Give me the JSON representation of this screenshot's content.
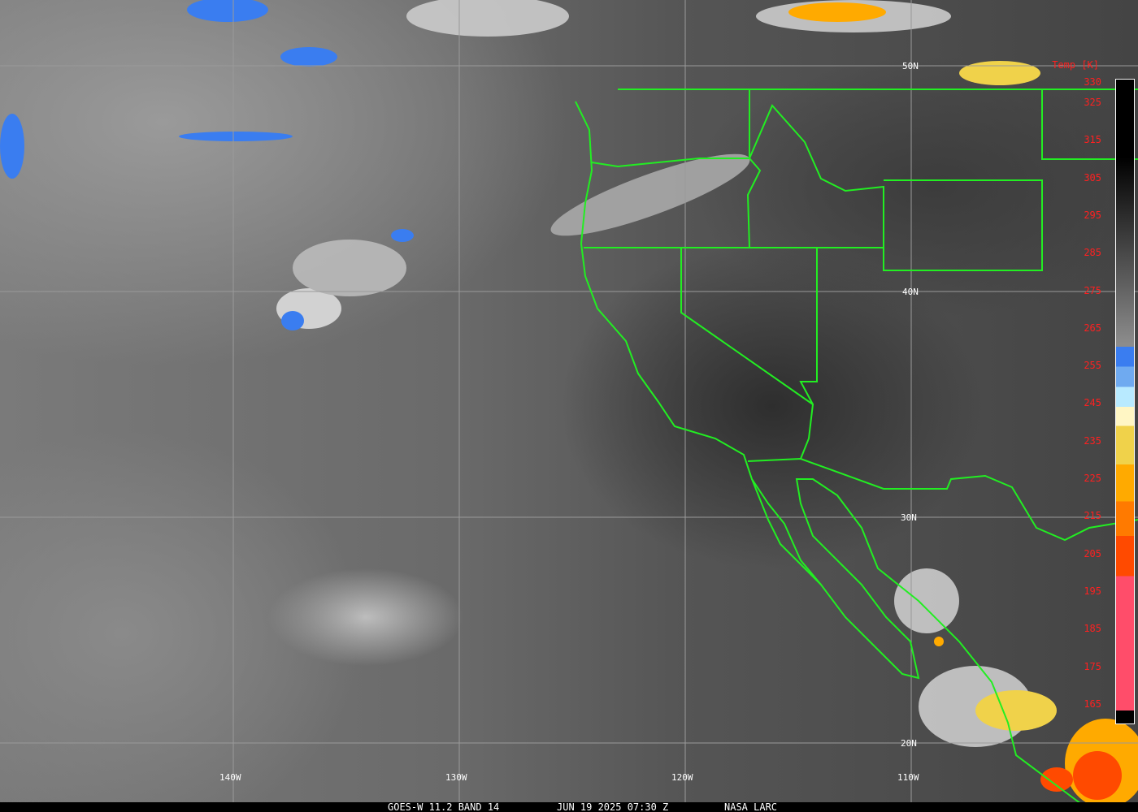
{
  "footer": {
    "satellite_band": "GOES-W 11.2 BAND 14",
    "datetime": "JUN 19 2025 07:30 Z",
    "credit": "NASA LARC"
  },
  "grid": {
    "latitudes": [
      "50N",
      "40N",
      "30N",
      "20N"
    ],
    "longitudes": [
      "140W",
      "130W",
      "120W",
      "110W"
    ]
  },
  "colorbar": {
    "title": "Temp [K]",
    "ticks": [
      "330",
      "325",
      "315",
      "305",
      "295",
      "285",
      "275",
      "265",
      "255",
      "245",
      "235",
      "225",
      "215",
      "205",
      "195",
      "185",
      "175",
      "165"
    ],
    "colors": [
      "#000000",
      "#8c8c8c",
      "#3a7df0",
      "#6faaf0",
      "#b8eaff",
      "#fff6c4",
      "#f0d24a",
      "#ffaa00",
      "#ff7a00",
      "#ff4a00",
      "#ff4d6a",
      "#000000"
    ]
  },
  "colors": {
    "borders": "#22ee22",
    "grid": "#9a9a9a",
    "labels": "#ffffff",
    "colorbar_labels": "#ff2020"
  }
}
